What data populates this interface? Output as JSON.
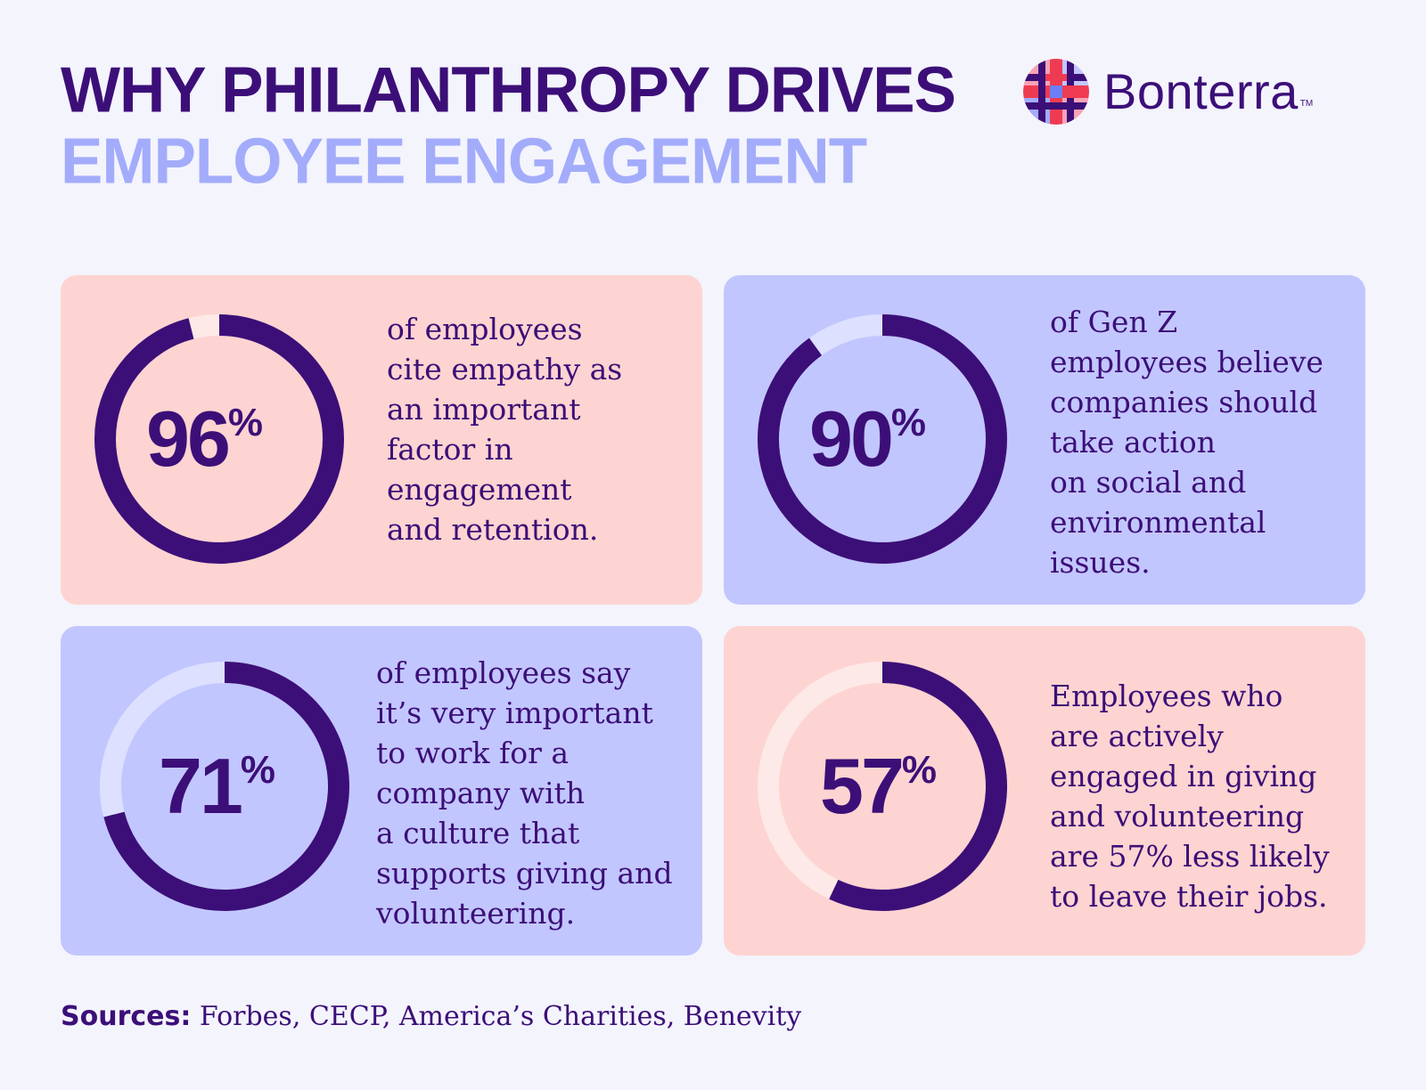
{
  "header": {
    "title_line1": "WHY PHILANTHROPY DRIVES",
    "title_line2": "EMPLOYEE ENGAGEMENT"
  },
  "logo": {
    "name": "Bonterra",
    "tm": "TM",
    "icon": "bonterra-woven-logo-icon"
  },
  "colors": {
    "dark_purple": "#3c0f78",
    "lavender": "#a3acfb",
    "pink_card": "#fdd4d1",
    "blue_card": "#c2c6fe",
    "background": "#f4f4fd"
  },
  "chart_data": [
    {
      "type": "pie",
      "values": [
        96
      ],
      "value_label": "96",
      "unit": "%",
      "text": "of employees\ncite empathy as\nan important\nfactor in\nengagement\nand retention."
    },
    {
      "type": "pie",
      "values": [
        90
      ],
      "value_label": "90",
      "unit": "%",
      "text": "of Gen Z\nemployees believe\ncompanies should\ntake action\non social and\nenvironmental\nissues."
    },
    {
      "type": "pie",
      "values": [
        71
      ],
      "value_label": "71",
      "unit": "%",
      "text": "of employees say\nit’s very important\nto work for a\ncompany with\na culture that\nsupports giving and\nvolunteering."
    },
    {
      "type": "pie",
      "values": [
        57
      ],
      "value_label": "57",
      "unit": "%",
      "text": "Employees who\nare actively\nengaged in giving\nand volunteering\nare 57% less likely\nto leave their jobs."
    }
  ],
  "footer": {
    "sources_label": "Sources:",
    "sources_text": " Forbes, CECP, America’s Charities, Benevity"
  }
}
